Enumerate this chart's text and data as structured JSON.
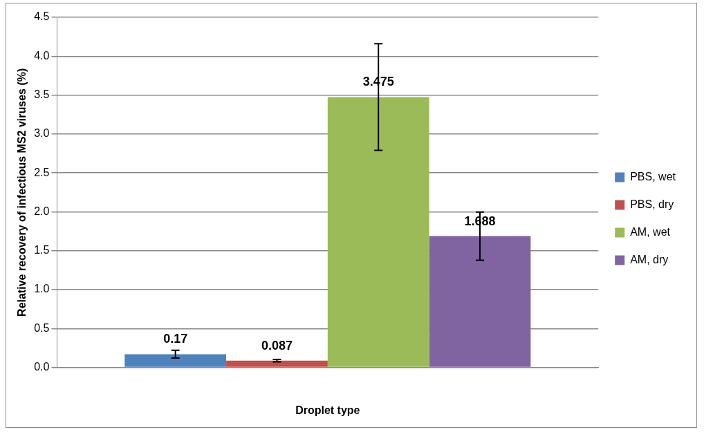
{
  "chart_data": {
    "type": "bar",
    "xlabel": "Droplet type",
    "ylabel": "Relative recovery of infectious MS2 viruses (%)",
    "categories": [
      null
    ],
    "series": [
      {
        "name": "PBS, wet",
        "color": "#4f81bd",
        "values": [
          0.17
        ],
        "errors": [
          0.05
        ]
      },
      {
        "name": "PBS, dry",
        "color": "#c0504d",
        "values": [
          0.087
        ],
        "errors": [
          0.015
        ]
      },
      {
        "name": "AM, wet",
        "color": "#9bbb59",
        "values": [
          3.475
        ],
        "errors": [
          0.685
        ]
      },
      {
        "name": "AM, dry",
        "color": "#8064a2",
        "values": [
          1.688
        ],
        "errors": [
          0.31
        ]
      }
    ],
    "ylim": [
      0,
      4.5
    ],
    "yticks": [
      {
        "value": 0,
        "label": "0.0"
      },
      {
        "value": 0.5,
        "label": "0.5"
      },
      {
        "value": 1,
        "label": "1.0"
      },
      {
        "value": 1.5,
        "label": "1.5"
      },
      {
        "value": 2,
        "label": "2.0"
      },
      {
        "value": 2.5,
        "label": "2.5"
      },
      {
        "value": 3,
        "label": "3.0"
      },
      {
        "value": 3.5,
        "label": "3.5"
      },
      {
        "value": 4,
        "label": "4.0"
      },
      {
        "value": 4.5,
        "label": "4.5"
      }
    ],
    "grid": "y",
    "legend": "right",
    "data_labels": true
  }
}
